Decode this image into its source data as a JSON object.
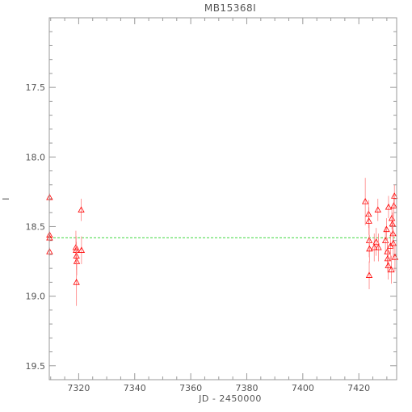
{
  "chart_data": {
    "type": "scatter",
    "title": "MB15368I",
    "xlabel": "JD - 2450000",
    "ylabel": "I",
    "xlim": [
      7309.5,
      7433.5
    ],
    "ylim": [
      19.6,
      17.0
    ],
    "y_inverted": true,
    "x_ticks": [
      7320,
      7340,
      7360,
      7380,
      7400,
      7420
    ],
    "y_ticks": [
      17.5,
      18.0,
      18.5,
      19.0,
      19.5
    ],
    "y_tick_labels": [
      "17.5",
      "18.0",
      "18.5",
      "19.0",
      "19.5"
    ],
    "grid": false,
    "colors": {
      "points": "#ff0000",
      "errorbars": "#ff8080",
      "baseline": "#00cc00",
      "frame": "#999999",
      "text": "#555555"
    },
    "baseline": {
      "y": 18.58,
      "x_range": [
        7309.5,
        7433.5
      ],
      "style": "dashed"
    },
    "series": [
      {
        "marker": "triangle",
        "points": [
          {
            "x": 7309.6,
            "y": 18.29,
            "err": 0.03
          },
          {
            "x": 7309.6,
            "y": 18.56,
            "err": 0.03
          },
          {
            "x": 7309.6,
            "y": 18.58,
            "err": 0.03
          },
          {
            "x": 7309.6,
            "y": 18.68,
            "err": 0.03
          },
          {
            "x": 7319.0,
            "y": 18.65,
            "err": 0.12
          },
          {
            "x": 7319.1,
            "y": 18.67,
            "err": 0.1
          },
          {
            "x": 7319.2,
            "y": 18.71,
            "err": 0.1
          },
          {
            "x": 7319.3,
            "y": 18.75,
            "err": 0.1
          },
          {
            "x": 7319.2,
            "y": 18.9,
            "err": 0.17
          },
          {
            "x": 7320.9,
            "y": 18.38,
            "err": 0.08
          },
          {
            "x": 7321.0,
            "y": 18.67,
            "err": 0.1
          },
          {
            "x": 7422.3,
            "y": 18.32,
            "err": 0.17
          },
          {
            "x": 7423.5,
            "y": 18.41,
            "err": 0.1
          },
          {
            "x": 7423.6,
            "y": 18.46,
            "err": 0.1
          },
          {
            "x": 7423.7,
            "y": 18.6,
            "err": 0.12
          },
          {
            "x": 7423.8,
            "y": 18.66,
            "err": 0.1
          },
          {
            "x": 7423.7,
            "y": 18.85,
            "err": 0.1
          },
          {
            "x": 7425.5,
            "y": 18.65,
            "err": 0.1
          },
          {
            "x": 7426.2,
            "y": 18.61,
            "err": 0.1
          },
          {
            "x": 7426.8,
            "y": 18.38,
            "err": 0.08
          },
          {
            "x": 7427.0,
            "y": 18.65,
            "err": 0.1
          },
          {
            "x": 7429.5,
            "y": 18.6,
            "err": 0.1
          },
          {
            "x": 7429.9,
            "y": 18.52,
            "err": 0.08
          },
          {
            "x": 7430.2,
            "y": 18.68,
            "err": 0.1
          },
          {
            "x": 7430.3,
            "y": 18.73,
            "err": 0.1
          },
          {
            "x": 7430.5,
            "y": 18.78,
            "err": 0.1
          },
          {
            "x": 7430.6,
            "y": 18.36,
            "err": 0.08
          },
          {
            "x": 7431.3,
            "y": 18.64,
            "err": 0.1
          },
          {
            "x": 7431.6,
            "y": 18.81,
            "err": 0.1
          },
          {
            "x": 7431.8,
            "y": 18.44,
            "err": 0.08
          },
          {
            "x": 7432.0,
            "y": 18.48,
            "err": 0.08
          },
          {
            "x": 7432.2,
            "y": 18.55,
            "err": 0.08
          },
          {
            "x": 7432.3,
            "y": 18.62,
            "err": 0.1
          },
          {
            "x": 7432.5,
            "y": 18.35,
            "err": 0.08
          },
          {
            "x": 7432.7,
            "y": 18.28,
            "err": 0.08
          },
          {
            "x": 7432.9,
            "y": 18.72,
            "err": 0.1
          }
        ]
      }
    ]
  }
}
